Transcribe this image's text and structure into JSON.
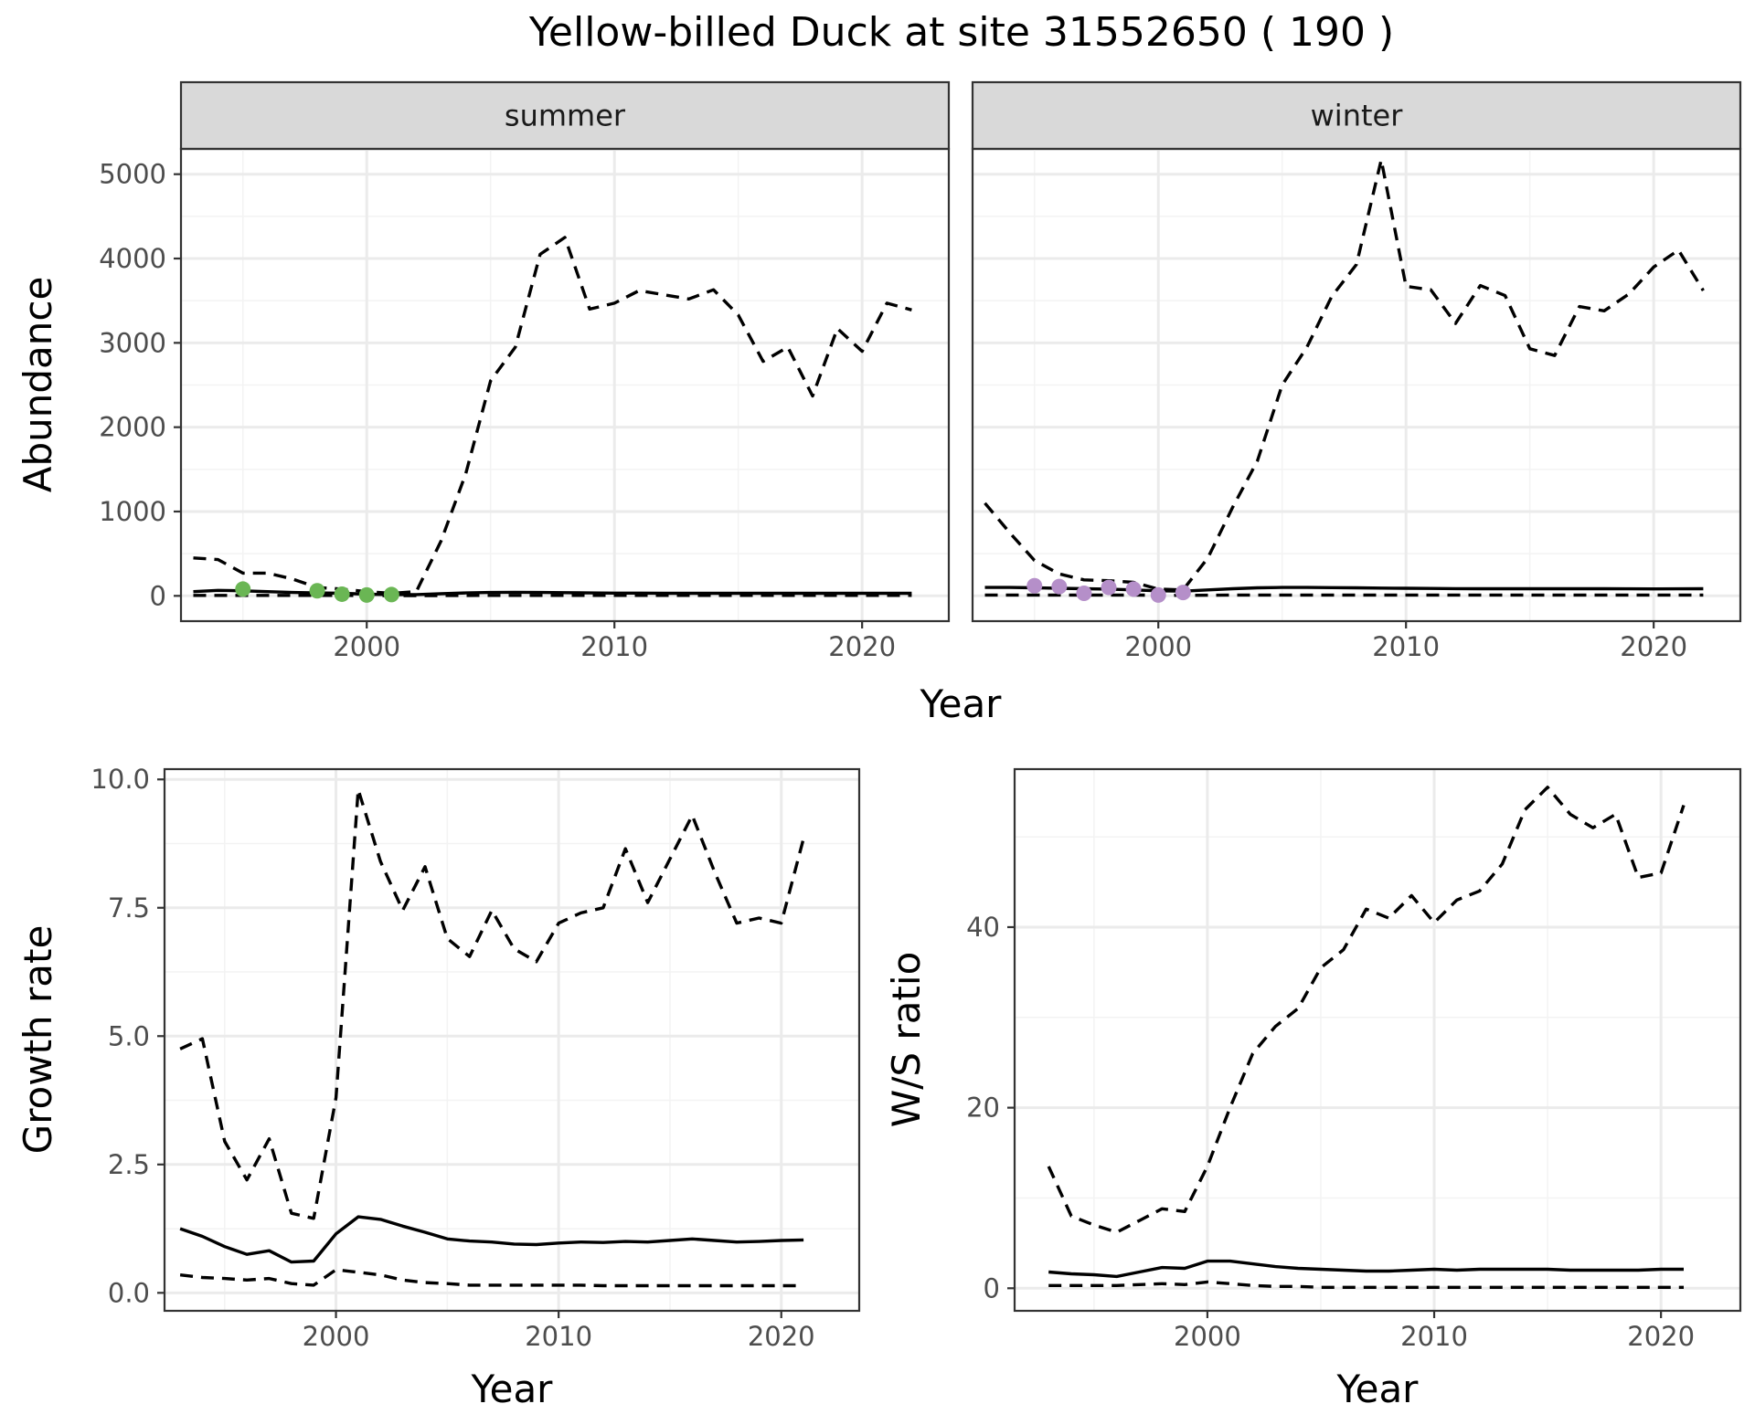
{
  "title": "Yellow-billed Duck at site 31552650 ( 190 )",
  "colors": {
    "summer_points": "#6ab654",
    "winter_points": "#b58fc9",
    "lines": "#000000"
  },
  "chart_data": [
    {
      "id": "abundance",
      "type": "line",
      "facets": [
        "summer",
        "winter"
      ],
      "xlabel": "Year",
      "ylabel": "Abundance",
      "xlim": [
        1992.5,
        2023.5
      ],
      "ylim": [
        -300,
        5300
      ],
      "xticks": [
        2000,
        2010,
        2020
      ],
      "yticks": [
        0,
        1000,
        2000,
        3000,
        4000,
        5000
      ],
      "grid": true,
      "panels": [
        {
          "facet": "summer",
          "x": [
            1993,
            1994,
            1995,
            1996,
            1997,
            1998,
            1999,
            2000,
            2001,
            2002,
            2003,
            2004,
            2005,
            2006,
            2007,
            2008,
            2009,
            2010,
            2011,
            2012,
            2013,
            2014,
            2015,
            2016,
            2017,
            2018,
            2019,
            2020,
            2021,
            2022
          ],
          "series": [
            {
              "role": "estimate",
              "style": "solid",
              "values": [
                50,
                65,
                60,
                50,
                40,
                35,
                30,
                20,
                15,
                15,
                25,
                35,
                40,
                42,
                40,
                38,
                35,
                33,
                32,
                30,
                30,
                30,
                30,
                30,
                30,
                30,
                30,
                30,
                30,
                30
              ]
            },
            {
              "role": "upper",
              "style": "dashed",
              "values": [
                450,
                430,
                270,
                270,
                200,
                100,
                80,
                50,
                30,
                50,
                650,
                1450,
                2550,
                2950,
                4050,
                4250,
                3400,
                3470,
                3620,
                3570,
                3520,
                3630,
                3330,
                2780,
                2950,
                2370,
                3170,
                2900,
                3470,
                3390
              ]
            },
            {
              "role": "lower",
              "style": "dashed",
              "values": [
                5,
                5,
                5,
                5,
                5,
                5,
                5,
                3,
                2,
                2,
                3,
                4,
                5,
                5,
                5,
                5,
                5,
                5,
                5,
                5,
                5,
                5,
                5,
                5,
                5,
                5,
                5,
                5,
                5,
                5
              ]
            }
          ],
          "points": {
            "x": [
              1995,
              1998,
              1999,
              2000,
              2001
            ],
            "y": [
              80,
              60,
              20,
              10,
              15
            ]
          }
        },
        {
          "facet": "winter",
          "x": [
            1993,
            1994,
            1995,
            1996,
            1997,
            1998,
            1999,
            2000,
            2001,
            2002,
            2003,
            2004,
            2005,
            2006,
            2007,
            2008,
            2009,
            2010,
            2011,
            2012,
            2013,
            2014,
            2015,
            2016,
            2017,
            2018,
            2019,
            2020,
            2021,
            2022
          ],
          "series": [
            {
              "role": "estimate",
              "style": "solid",
              "values": [
                100,
                100,
                95,
                90,
                85,
                80,
                70,
                60,
                55,
                70,
                85,
                95,
                100,
                100,
                98,
                95,
                92,
                90,
                88,
                86,
                85,
                85,
                85,
                85,
                85,
                85,
                83,
                82,
                83,
                85
              ]
            },
            {
              "role": "upper",
              "style": "dashed",
              "values": [
                1100,
                750,
                420,
                260,
                190,
                180,
                160,
                80,
                70,
                450,
                1050,
                1600,
                2500,
                2950,
                3550,
                3930,
                5170,
                3670,
                3630,
                3230,
                3680,
                3560,
                2930,
                2850,
                3430,
                3380,
                3580,
                3900,
                4100,
                3620
              ]
            },
            {
              "role": "lower",
              "style": "dashed",
              "values": [
                10,
                10,
                10,
                10,
                10,
                10,
                10,
                8,
                7,
                8,
                10,
                10,
                10,
                10,
                10,
                10,
                10,
                10,
                10,
                10,
                10,
                10,
                10,
                10,
                10,
                10,
                10,
                10,
                10,
                10
              ]
            }
          ],
          "points": {
            "x": [
              1995,
              1996,
              1997,
              1998,
              1999,
              2000,
              2001
            ],
            "y": [
              120,
              110,
              30,
              100,
              80,
              10,
              40
            ]
          }
        }
      ]
    },
    {
      "id": "growth",
      "type": "line",
      "xlabel": "Year",
      "ylabel": "Growth rate",
      "xlim": [
        1992.3,
        2023.5
      ],
      "ylim": [
        -0.35,
        10.2
      ],
      "xticks": [
        2000,
        2010,
        2020
      ],
      "yticks": [
        0.0,
        2.5,
        5.0,
        7.5,
        10.0
      ],
      "ytick_labels": [
        "0.0",
        "2.5",
        "5.0",
        "7.5",
        "10.0"
      ],
      "grid": true,
      "x": [
        1993,
        1994,
        1995,
        1996,
        1997,
        1998,
        1999,
        2000,
        2001,
        2002,
        2003,
        2004,
        2005,
        2006,
        2007,
        2008,
        2009,
        2010,
        2011,
        2012,
        2013,
        2014,
        2015,
        2016,
        2017,
        2018,
        2019,
        2020,
        2021
      ],
      "series": [
        {
          "role": "estimate",
          "style": "solid",
          "values": [
            1.25,
            1.1,
            0.9,
            0.75,
            0.82,
            0.6,
            0.62,
            1.15,
            1.48,
            1.43,
            1.3,
            1.18,
            1.05,
            1.01,
            0.99,
            0.95,
            0.94,
            0.97,
            0.99,
            0.98,
            1.0,
            0.99,
            1.02,
            1.05,
            1.02,
            0.99,
            1.0,
            1.02,
            1.03
          ]
        },
        {
          "role": "upper",
          "style": "dashed",
          "values": [
            4.75,
            4.95,
            2.95,
            2.2,
            3.0,
            1.55,
            1.45,
            3.8,
            9.8,
            8.4,
            7.45,
            8.3,
            6.9,
            6.55,
            7.45,
            6.7,
            6.45,
            7.2,
            7.4,
            7.5,
            8.65,
            7.6,
            8.45,
            9.3,
            8.2,
            7.2,
            7.3,
            7.2,
            8.85
          ]
        },
        {
          "role": "lower",
          "style": "dashed",
          "values": [
            0.35,
            0.3,
            0.28,
            0.25,
            0.28,
            0.18,
            0.15,
            0.45,
            0.4,
            0.35,
            0.25,
            0.2,
            0.18,
            0.15,
            0.15,
            0.15,
            0.15,
            0.15,
            0.15,
            0.14,
            0.14,
            0.14,
            0.14,
            0.14,
            0.14,
            0.14,
            0.14,
            0.14,
            0.14
          ]
        }
      ]
    },
    {
      "id": "ratio",
      "type": "line",
      "xlabel": "Year",
      "ylabel": "W/S ratio",
      "xlim": [
        1991.5,
        2023.5
      ],
      "ylim": [
        -2.5,
        57.5
      ],
      "xticks": [
        2000,
        2010,
        2020
      ],
      "yticks": [
        0,
        20,
        40
      ],
      "grid": true,
      "x": [
        1993,
        1994,
        1995,
        1996,
        1997,
        1998,
        1999,
        2000,
        2001,
        2002,
        2003,
        2004,
        2005,
        2006,
        2007,
        2008,
        2009,
        2010,
        2011,
        2012,
        2013,
        2014,
        2015,
        2016,
        2017,
        2018,
        2019,
        2020,
        2021
      ],
      "series": [
        {
          "role": "estimate",
          "style": "solid",
          "values": [
            1.8,
            1.6,
            1.5,
            1.3,
            1.8,
            2.3,
            2.2,
            3.0,
            3.0,
            2.7,
            2.4,
            2.2,
            2.1,
            2.0,
            1.9,
            1.9,
            2.0,
            2.1,
            2.0,
            2.1,
            2.1,
            2.1,
            2.1,
            2.0,
            2.0,
            2.0,
            2.0,
            2.1,
            2.1
          ]
        },
        {
          "role": "upper",
          "style": "dashed",
          "values": [
            13.5,
            8.0,
            7.0,
            6.2,
            7.5,
            8.8,
            8.5,
            13.5,
            20.0,
            26.0,
            29.0,
            31.0,
            35.5,
            37.5,
            42.0,
            41.0,
            43.5,
            40.5,
            43.0,
            44.0,
            47.0,
            53.0,
            55.5,
            52.5,
            51.0,
            52.5,
            45.5,
            46.0,
            53.5
          ]
        },
        {
          "role": "lower",
          "style": "dashed",
          "values": [
            0.3,
            0.3,
            0.3,
            0.3,
            0.4,
            0.5,
            0.4,
            0.7,
            0.5,
            0.3,
            0.2,
            0.2,
            0.1,
            0.1,
            0.1,
            0.1,
            0.1,
            0.1,
            0.1,
            0.1,
            0.1,
            0.1,
            0.1,
            0.1,
            0.1,
            0.1,
            0.1,
            0.1,
            0.1
          ]
        }
      ]
    }
  ]
}
